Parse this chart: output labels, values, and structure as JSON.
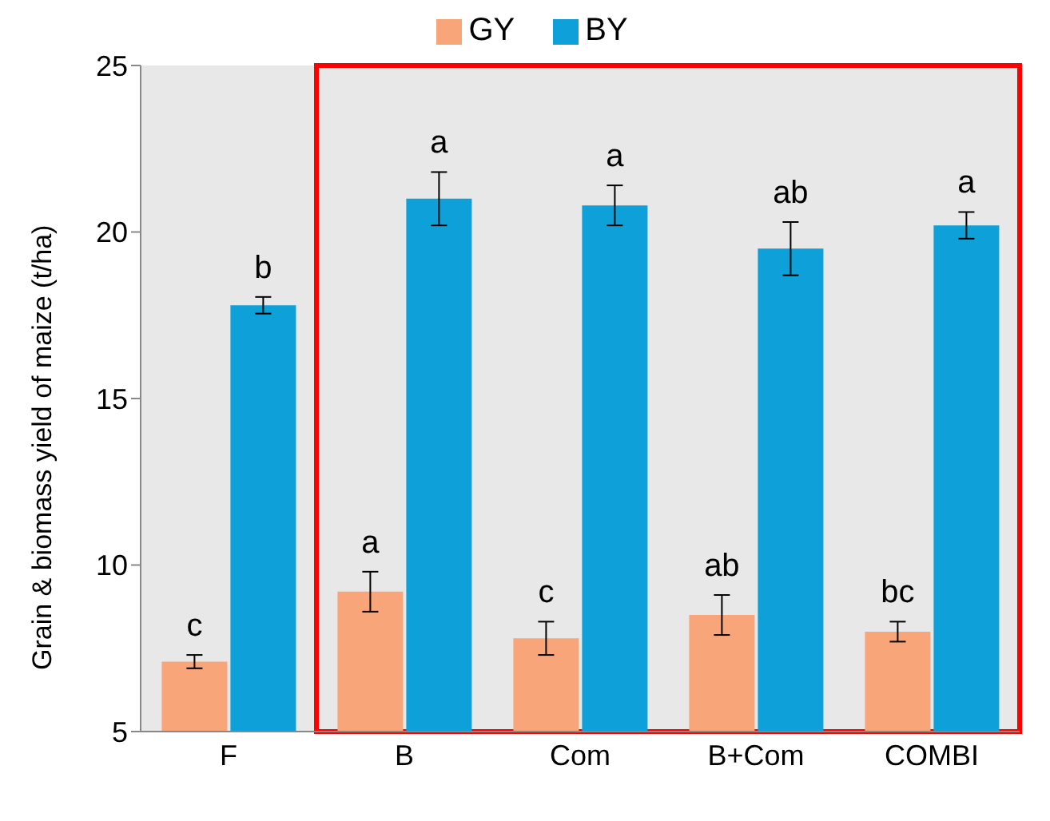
{
  "chart_data": {
    "type": "bar",
    "ylabel": "Grain & biomass yield of maize (t/ha)",
    "categories": [
      "F",
      "B",
      "Com",
      "B+Com",
      "COMBI"
    ],
    "series": [
      {
        "name": "GY",
        "color": "#f9a57a",
        "values": [
          7.1,
          9.2,
          7.8,
          8.5,
          8.0
        ],
        "errors": [
          0.2,
          0.6,
          0.5,
          0.6,
          0.3
        ],
        "value_labels": [
          "c",
          "a",
          "c",
          "ab",
          "bc"
        ]
      },
      {
        "name": "BY",
        "color": "#0ea0d8",
        "values": [
          17.8,
          21.0,
          20.8,
          19.5,
          20.2
        ],
        "errors": [
          0.25,
          0.8,
          0.6,
          0.8,
          0.4
        ],
        "value_labels": [
          "b",
          "a",
          "a",
          "ab",
          "a"
        ]
      }
    ],
    "ylim": [
      5,
      25
    ],
    "yticks": [
      5,
      10,
      15,
      20,
      25
    ],
    "grid": false,
    "legend": "top"
  }
}
